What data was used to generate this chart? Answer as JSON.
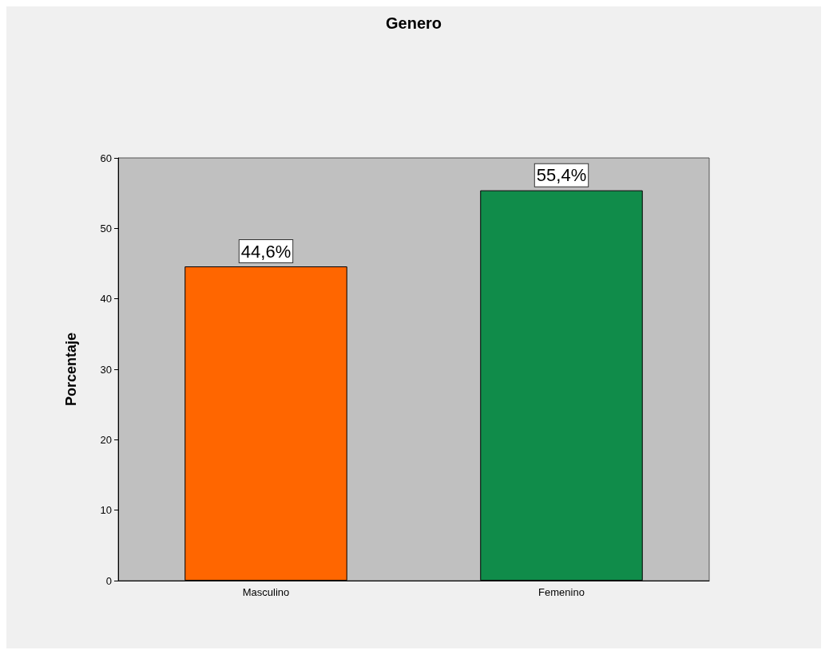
{
  "chart_data": {
    "type": "bar",
    "title": "Genero",
    "ylabel": "Porcentaje",
    "categories": [
      "Masculino",
      "Femenino"
    ],
    "values": [
      44.6,
      55.4
    ],
    "colors": [
      "#ff6600",
      "#108c4a"
    ],
    "value_labels": [
      "44,6%",
      "55,4%"
    ],
    "ylim": [
      0,
      60
    ],
    "yticks": [
      0,
      10,
      20,
      30,
      40,
      50,
      60
    ],
    "grid": false
  }
}
